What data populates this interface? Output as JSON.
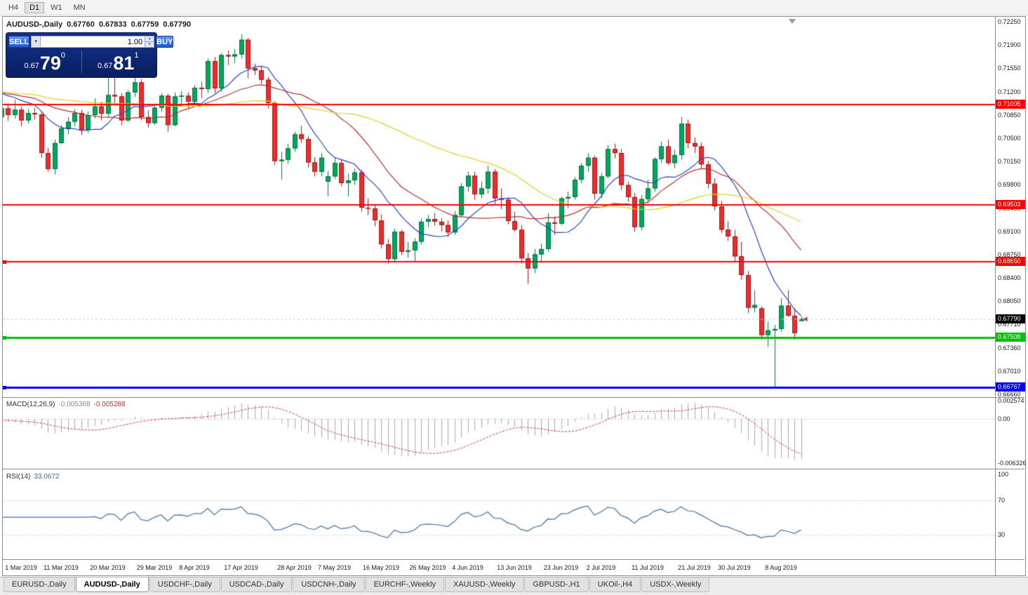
{
  "window": {
    "timeframes": [
      "H4",
      "D1",
      "W1",
      "MN"
    ],
    "active_timeframe": "D1"
  },
  "header": {
    "symbol": "AUDUSD-,Daily",
    "open": "0.67760",
    "high": "0.67833",
    "low": "0.67759",
    "close": "0.67790"
  },
  "one_click": {
    "sell_label": "SELL",
    "buy_label": "BUY",
    "volume": "1.00",
    "sell_price_small": "0.67",
    "sell_price_big": "79",
    "sell_price_sup": "0",
    "buy_price_small": "0.67",
    "buy_price_big": "81",
    "buy_price_sup": "1"
  },
  "chart_data": {
    "type": "candlestick",
    "symbol": "AUDUSD",
    "timeframe": "Daily",
    "price_labels": [
      "0.72250",
      "0.71900",
      "0.71550",
      "0.71200",
      "0.70850",
      "0.70500",
      "0.70150",
      "0.69800",
      "0.69450",
      "0.69100",
      "0.68750",
      "0.68400",
      "0.68050",
      "0.67710",
      "0.67360",
      "0.67010",
      "0.66660"
    ],
    "time_labels": [
      {
        "text": "1 Mar 2019",
        "i": 3
      },
      {
        "text": "11 Mar 2019",
        "i": 9
      },
      {
        "text": "20 Mar 2019",
        "i": 16
      },
      {
        "text": "29 Mar 2019",
        "i": 23
      },
      {
        "text": "8 Apr 2019",
        "i": 29
      },
      {
        "text": "17 Apr 2019",
        "i": 36
      },
      {
        "text": "28 Apr 2019",
        "i": 44
      },
      {
        "text": "7 May 2019",
        "i": 50
      },
      {
        "text": "16 May 2019",
        "i": 57
      },
      {
        "text": "26 May 2019",
        "i": 64
      },
      {
        "text": "4 Jun 2019",
        "i": 70
      },
      {
        "text": "13 Jun 2019",
        "i": 77
      },
      {
        "text": "23 Jun 2019",
        "i": 84
      },
      {
        "text": "2 Jul 2019",
        "i": 90
      },
      {
        "text": "11 Jul 2019",
        "i": 97
      },
      {
        "text": "21 Jul 2019",
        "i": 104
      },
      {
        "text": "30 Jul 2019",
        "i": 110
      },
      {
        "text": "8 Aug 2019",
        "i": 117
      }
    ],
    "levels": [
      {
        "label": "0.71005",
        "price": 0.71005,
        "color": "#FF0000",
        "width": 2,
        "marker": false
      },
      {
        "label": "0.69503",
        "price": 0.69503,
        "color": "#FF0000",
        "width": 2,
        "marker": false
      },
      {
        "label": "0.68650",
        "price": 0.6865,
        "color": "#FF0000",
        "width": 2,
        "marker": true
      },
      {
        "label": "0.67508",
        "price": 0.67508,
        "color": "#00C000",
        "width": 3,
        "marker": true
      },
      {
        "label": "0.66767",
        "price": 0.66767,
        "color": "#0000FF",
        "width": 3,
        "marker": true
      }
    ],
    "current_price": {
      "label": "0.67790",
      "price": 0.6779,
      "color": "#000000"
    },
    "ma": [
      {
        "period": 10,
        "color": "#2742C8"
      },
      {
        "period": 20,
        "color": "#B53030"
      },
      {
        "period": 45,
        "color": "#E3CE1E"
      }
    ],
    "seed": 0.712,
    "colors": {
      "up": "#00A85D",
      "up_edge": "#00713E",
      "down": "#ED2D2D",
      "down_edge": "#A31616"
    },
    "candles": [
      [
        0.7082,
        0.7098,
        0.707,
        0.7095
      ],
      [
        0.7095,
        0.7102,
        0.7076,
        0.7085
      ],
      [
        0.7085,
        0.7108,
        0.708,
        0.7093
      ],
      [
        0.7093,
        0.7098,
        0.7068,
        0.7077
      ],
      [
        0.7077,
        0.7094,
        0.7072,
        0.7088
      ],
      [
        0.7088,
        0.7096,
        0.7078,
        0.7086
      ],
      [
        0.7086,
        0.7089,
        0.7021,
        0.7028
      ],
      [
        0.7028,
        0.7036,
        0.7,
        0.7004
      ],
      [
        0.7004,
        0.7048,
        0.6996,
        0.7043
      ],
      [
        0.7043,
        0.707,
        0.7041,
        0.7065
      ],
      [
        0.7065,
        0.7082,
        0.7056,
        0.7075
      ],
      [
        0.7075,
        0.7094,
        0.7068,
        0.7088
      ],
      [
        0.7088,
        0.7093,
        0.7055,
        0.7063
      ],
      [
        0.7063,
        0.709,
        0.7058,
        0.7085
      ],
      [
        0.7085,
        0.711,
        0.708,
        0.7098
      ],
      [
        0.7098,
        0.7105,
        0.7077,
        0.7087
      ],
      [
        0.7087,
        0.7145,
        0.7082,
        0.7115
      ],
      [
        0.7115,
        0.7168,
        0.7103,
        0.7113
      ],
      [
        0.7113,
        0.7118,
        0.707,
        0.7077
      ],
      [
        0.7077,
        0.7123,
        0.7075,
        0.7119
      ],
      [
        0.7119,
        0.7147,
        0.7112,
        0.7134
      ],
      [
        0.7134,
        0.7139,
        0.7077,
        0.7082
      ],
      [
        0.7082,
        0.7092,
        0.7066,
        0.7073
      ],
      [
        0.7073,
        0.7102,
        0.707,
        0.7096
      ],
      [
        0.7096,
        0.7118,
        0.709,
        0.7114
      ],
      [
        0.7114,
        0.7117,
        0.706,
        0.707
      ],
      [
        0.707,
        0.7119,
        0.7068,
        0.7113
      ],
      [
        0.7113,
        0.7121,
        0.7098,
        0.7114
      ],
      [
        0.7114,
        0.7119,
        0.7095,
        0.7105
      ],
      [
        0.7105,
        0.713,
        0.71,
        0.7126
      ],
      [
        0.7126,
        0.7135,
        0.711,
        0.7124
      ],
      [
        0.7124,
        0.717,
        0.7118,
        0.7166
      ],
      [
        0.7166,
        0.7172,
        0.7118,
        0.7125
      ],
      [
        0.7125,
        0.7178,
        0.712,
        0.7175
      ],
      [
        0.7175,
        0.7182,
        0.716,
        0.7173
      ],
      [
        0.7173,
        0.7184,
        0.7163,
        0.7176
      ],
      [
        0.7176,
        0.7206,
        0.717,
        0.7198
      ],
      [
        0.7198,
        0.7201,
        0.714,
        0.7155
      ],
      [
        0.7155,
        0.7162,
        0.7145,
        0.7152
      ],
      [
        0.7152,
        0.7158,
        0.7132,
        0.7138
      ],
      [
        0.7138,
        0.7142,
        0.7095,
        0.7103
      ],
      [
        0.7103,
        0.7106,
        0.701,
        0.7016
      ],
      [
        0.7016,
        0.703,
        0.6988,
        0.7018
      ],
      [
        0.7018,
        0.7042,
        0.7012,
        0.7035
      ],
      [
        0.7035,
        0.706,
        0.703,
        0.7056
      ],
      [
        0.7056,
        0.7069,
        0.7043,
        0.7049
      ],
      [
        0.7049,
        0.7053,
        0.7006,
        0.7014
      ],
      [
        0.7014,
        0.7022,
        0.6993,
        0.7
      ],
      [
        0.7,
        0.7028,
        0.6993,
        0.7021
      ],
      [
        0.6985,
        0.7001,
        0.6963,
        0.6993
      ],
      [
        0.6993,
        0.7021,
        0.6989,
        0.7013
      ],
      [
        0.7013,
        0.7018,
        0.6978,
        0.6983
      ],
      [
        0.6983,
        0.6997,
        0.6963,
        0.6987
      ],
      [
        0.6987,
        0.7005,
        0.698,
        0.6999
      ],
      [
        0.6999,
        0.7003,
        0.694,
        0.6946
      ],
      [
        0.6946,
        0.696,
        0.6935,
        0.6945
      ],
      [
        0.6945,
        0.6951,
        0.6918,
        0.6927
      ],
      [
        0.6927,
        0.6936,
        0.6885,
        0.6891
      ],
      [
        0.6891,
        0.6899,
        0.6862,
        0.6869
      ],
      [
        0.6869,
        0.6915,
        0.6866,
        0.691
      ],
      [
        0.691,
        0.6913,
        0.6875,
        0.688
      ],
      [
        0.688,
        0.6895,
        0.6871,
        0.6882
      ],
      [
        0.6882,
        0.69,
        0.6866,
        0.6895
      ],
      [
        0.6895,
        0.693,
        0.6891,
        0.6925
      ],
      [
        0.6925,
        0.6935,
        0.6917,
        0.6929
      ],
      [
        0.6929,
        0.6938,
        0.6919,
        0.6925
      ],
      [
        0.6925,
        0.693,
        0.691,
        0.692
      ],
      [
        0.692,
        0.6927,
        0.6902,
        0.6909
      ],
      [
        0.6909,
        0.6941,
        0.6905,
        0.6935
      ],
      [
        0.6935,
        0.6983,
        0.6932,
        0.6978
      ],
      [
        0.6978,
        0.7,
        0.697,
        0.6994
      ],
      [
        0.6994,
        0.7,
        0.6958,
        0.6966
      ],
      [
        0.6966,
        0.6985,
        0.696,
        0.6975
      ],
      [
        0.6975,
        0.7009,
        0.6967,
        0.7
      ],
      [
        0.7,
        0.7004,
        0.695,
        0.696
      ],
      [
        0.696,
        0.6975,
        0.6944,
        0.6958
      ],
      [
        0.6958,
        0.6962,
        0.6921,
        0.6926
      ],
      [
        0.6926,
        0.694,
        0.691,
        0.6913
      ],
      [
        0.6913,
        0.692,
        0.6862,
        0.687
      ],
      [
        0.687,
        0.6878,
        0.6832,
        0.6855
      ],
      [
        0.6855,
        0.6884,
        0.6848,
        0.6876
      ],
      [
        0.6876,
        0.6892,
        0.6863,
        0.6884
      ],
      [
        0.6884,
        0.6938,
        0.688,
        0.6924
      ],
      [
        0.6924,
        0.6933,
        0.6905,
        0.6922
      ],
      [
        0.6922,
        0.6963,
        0.692,
        0.696
      ],
      [
        0.696,
        0.697,
        0.6945,
        0.6962
      ],
      [
        0.6962,
        0.6992,
        0.6958,
        0.6988
      ],
      [
        0.6988,
        0.7013,
        0.6983,
        0.7009
      ],
      [
        0.7009,
        0.7028,
        0.7,
        0.7021
      ],
      [
        0.7021,
        0.7024,
        0.6958,
        0.6967
      ],
      [
        0.6967,
        0.6998,
        0.696,
        0.6993
      ],
      [
        0.6993,
        0.704,
        0.699,
        0.7034
      ],
      [
        0.7034,
        0.7042,
        0.702,
        0.7028
      ],
      [
        0.7028,
        0.7034,
        0.6972,
        0.698
      ],
      [
        0.698,
        0.6985,
        0.6955,
        0.6962
      ],
      [
        0.6962,
        0.6968,
        0.691,
        0.6917
      ],
      [
        0.6917,
        0.6965,
        0.6912,
        0.6959
      ],
      [
        0.6959,
        0.6988,
        0.6952,
        0.6975
      ],
      [
        0.6975,
        0.7022,
        0.697,
        0.7019
      ],
      [
        0.7019,
        0.7045,
        0.7013,
        0.7038
      ],
      [
        0.7038,
        0.7048,
        0.701,
        0.7013
      ],
      [
        0.7013,
        0.7033,
        0.7005,
        0.7025
      ],
      [
        0.7025,
        0.7082,
        0.7018,
        0.7072
      ],
      [
        0.7072,
        0.7078,
        0.7035,
        0.7043
      ],
      [
        0.7043,
        0.7051,
        0.7028,
        0.7038
      ],
      [
        0.7038,
        0.7044,
        0.7005,
        0.7011
      ],
      [
        0.7011,
        0.7016,
        0.6975,
        0.6982
      ],
      [
        0.6982,
        0.699,
        0.6942,
        0.6948
      ],
      [
        0.6948,
        0.6956,
        0.6908,
        0.6913
      ],
      [
        0.6913,
        0.6926,
        0.6896,
        0.6903
      ],
      [
        0.6903,
        0.6913,
        0.6865,
        0.6873
      ],
      [
        0.6873,
        0.6895,
        0.6838,
        0.6845
      ],
      [
        0.6845,
        0.6851,
        0.6788,
        0.6796
      ],
      [
        0.6796,
        0.6822,
        0.6789,
        0.68
      ],
      [
        0.6795,
        0.6798,
        0.6748,
        0.6755
      ],
      [
        0.6755,
        0.6775,
        0.6737,
        0.6762
      ],
      [
        0.6762,
        0.677,
        0.6677,
        0.6764
      ],
      [
        0.6764,
        0.681,
        0.676,
        0.6799
      ],
      [
        0.6799,
        0.6822,
        0.6782,
        0.6784
      ],
      [
        0.6784,
        0.6795,
        0.6748,
        0.6758
      ],
      [
        0.6776,
        0.6783,
        0.6776,
        0.6779
      ]
    ]
  },
  "macd": {
    "title": "MACD(12,26,9)",
    "value_main": "-0.005368",
    "value_signal": "-0.005288",
    "axis": [
      {
        "text": "0.002574",
        "v": 0.002574
      },
      {
        "text": "0.00",
        "v": 0
      },
      {
        "text": "-0.006326",
        "v": -0.006326
      }
    ],
    "hist_color": "#A8A8A8",
    "signal_color": "#E03030"
  },
  "rsi": {
    "title": "RSI(14)",
    "value": "33.0672",
    "axis": [
      {
        "text": "100",
        "v": 100
      },
      {
        "text": "70",
        "v": 70
      },
      {
        "text": "30",
        "v": 30
      }
    ],
    "levels": [
      70,
      30
    ],
    "color": "#3A6EA5"
  },
  "tabs": [
    {
      "label": "EURUSD-,Daily",
      "active": false
    },
    {
      "label": "AUDUSD-,Daily",
      "active": true
    },
    {
      "label": "USDCHF-,Daily",
      "active": false
    },
    {
      "label": "USDCAD-,Daily",
      "active": false
    },
    {
      "label": "USDCNH-,Daily",
      "active": false
    },
    {
      "label": "EURCHF-,Weekly",
      "active": false
    },
    {
      "label": "XAUUSD-,Weekly",
      "active": false
    },
    {
      "label": "GBPUSD-,H1",
      "active": false
    },
    {
      "label": "UKOil-,H4",
      "active": false
    },
    {
      "label": "USDX-,Weekly",
      "active": false
    }
  ]
}
